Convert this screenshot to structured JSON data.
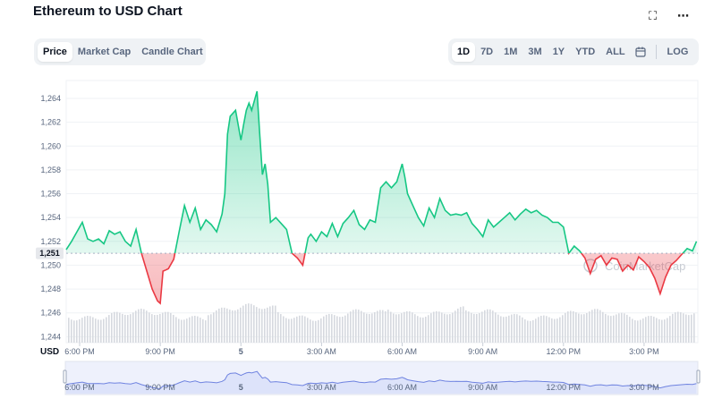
{
  "header": {
    "title": "Ethereum to USD Chart",
    "expand_icon": "expand-icon",
    "more_icon": "more-dots-icon"
  },
  "chart_tabs": [
    {
      "label": "Price",
      "active": true
    },
    {
      "label": "Market Cap",
      "active": false
    },
    {
      "label": "Candle Chart",
      "active": false
    }
  ],
  "range_tabs": [
    {
      "label": "1D",
      "active": true
    },
    {
      "label": "7D",
      "active": false
    },
    {
      "label": "1M",
      "active": false
    },
    {
      "label": "3M",
      "active": false
    },
    {
      "label": "1Y",
      "active": false
    },
    {
      "label": "YTD",
      "active": false
    },
    {
      "label": "ALL",
      "active": false
    }
  ],
  "calendar_icon": "calendar-icon",
  "log_label": "LOG",
  "watermark": "CoinMarketCap",
  "currency_label": "USD",
  "current_price_label": "1,251",
  "colors": {
    "up": "#16c784",
    "down": "#ea3943",
    "volume": "#d6d9df",
    "navigator_fill": "#e8ecfb",
    "navigator_line": "#6f83e0"
  },
  "chart_data": {
    "type": "line",
    "title": "",
    "xlabel": "",
    "ylabel": "USD",
    "ylim": [
      1243.5,
      1265.5
    ],
    "yticks": [
      1264,
      1262,
      1260,
      1258,
      1256,
      1254,
      1252,
      1250,
      1248,
      1246,
      1244
    ],
    "ytick_labels": [
      "1,264",
      "1,262",
      "1,260",
      "1,258",
      "1,256",
      "1,254",
      "1,252",
      "1,250",
      "1,248",
      "1,246",
      "1,244"
    ],
    "xlim_hours": [
      17.5,
      41.0
    ],
    "xticks": [
      {
        "t": 18,
        "label": "6:00 PM"
      },
      {
        "t": 21,
        "label": "9:00 PM"
      },
      {
        "t": 24,
        "label": "5"
      },
      {
        "t": 27,
        "label": "3:00 AM"
      },
      {
        "t": 30,
        "label": "6:00 AM"
      },
      {
        "t": 33,
        "label": "9:00 AM"
      },
      {
        "t": 36,
        "label": "12:00 PM"
      },
      {
        "t": 39,
        "label": "3:00 PM"
      }
    ],
    "baseline": 1251,
    "grid": true,
    "series": [
      {
        "x": [
          17.5,
          17.7,
          17.9,
          18.1,
          18.3,
          18.5,
          18.7,
          18.9,
          19.1,
          19.3,
          19.5,
          19.7,
          19.9,
          20.1,
          20.3,
          20.5,
          20.7,
          20.9,
          21.0,
          21.1,
          21.2,
          21.3,
          21.5,
          21.7,
          21.9,
          22.1,
          22.3,
          22.5,
          22.7,
          22.9,
          23.1,
          23.3,
          23.4,
          23.5,
          23.6,
          23.8,
          24.0,
          24.1,
          24.2,
          24.3,
          24.4,
          24.6,
          24.7,
          24.8,
          24.9,
          25.0,
          25.1,
          25.3,
          25.5,
          25.7,
          25.9,
          26.1,
          26.3,
          26.5,
          26.6,
          26.8,
          27.0,
          27.2,
          27.4,
          27.6,
          27.8,
          28.0,
          28.2,
          28.4,
          28.6,
          28.8,
          29.0,
          29.2,
          29.4,
          29.6,
          29.8,
          30.0,
          30.1,
          30.2,
          30.4,
          30.6,
          30.8,
          31.0,
          31.2,
          31.4,
          31.6,
          31.8,
          32.0,
          32.2,
          32.4,
          32.6,
          32.8,
          33.0,
          33.2,
          33.4,
          33.6,
          33.8,
          34.0,
          34.2,
          34.4,
          34.6,
          34.8,
          35.0,
          35.2,
          35.4,
          35.6,
          35.8,
          36.0,
          36.2,
          36.4,
          36.6,
          36.8,
          37.0,
          37.2,
          37.4,
          37.6,
          37.8,
          38.0,
          38.2,
          38.4,
          38.6,
          38.8,
          39.0,
          39.2,
          39.4,
          39.6,
          39.8,
          40.0,
          40.2,
          40.4,
          40.6,
          40.8,
          40.95
        ],
        "values": [
          1251.3,
          1252.0,
          1252.8,
          1253.6,
          1252.2,
          1252.0,
          1252.2,
          1251.8,
          1252.9,
          1252.6,
          1252.8,
          1252.0,
          1251.6,
          1253.0,
          1251.0,
          1249.5,
          1248.0,
          1247.0,
          1246.8,
          1249.5,
          1249.6,
          1249.7,
          1250.5,
          1252.8,
          1255.0,
          1253.6,
          1254.8,
          1253.0,
          1253.8,
          1253.4,
          1252.8,
          1254.3,
          1256.0,
          1261.0,
          1262.5,
          1263.0,
          1260.5,
          1261.8,
          1263.0,
          1263.6,
          1263.0,
          1264.6,
          1261.0,
          1257.6,
          1258.5,
          1256.8,
          1253.6,
          1254.0,
          1253.5,
          1253.0,
          1251.0,
          1250.6,
          1250.0,
          1252.3,
          1252.6,
          1252.0,
          1252.8,
          1252.4,
          1253.5,
          1252.4,
          1253.5,
          1254.0,
          1254.6,
          1253.4,
          1253.0,
          1253.8,
          1253.6,
          1256.5,
          1257.0,
          1256.5,
          1257.0,
          1258.5,
          1257.4,
          1256.0,
          1255.0,
          1254.0,
          1253.3,
          1254.8,
          1254.0,
          1255.6,
          1254.6,
          1254.2,
          1254.3,
          1254.2,
          1254.4,
          1253.5,
          1253.0,
          1252.4,
          1253.8,
          1253.2,
          1253.6,
          1254.0,
          1254.4,
          1253.8,
          1254.3,
          1254.7,
          1254.4,
          1254.6,
          1254.2,
          1254.0,
          1253.6,
          1253.6,
          1253.2,
          1251.0,
          1251.6,
          1251.2,
          1250.6,
          1249.3,
          1250.5,
          1250.8,
          1250.0,
          1250.6,
          1250.5,
          1249.5,
          1250.0,
          1249.6,
          1250.7,
          1250.3,
          1249.8,
          1248.9,
          1247.6,
          1249.0,
          1250.0,
          1250.4,
          1250.9,
          1251.4,
          1251.2,
          1252.0
        ]
      }
    ]
  }
}
